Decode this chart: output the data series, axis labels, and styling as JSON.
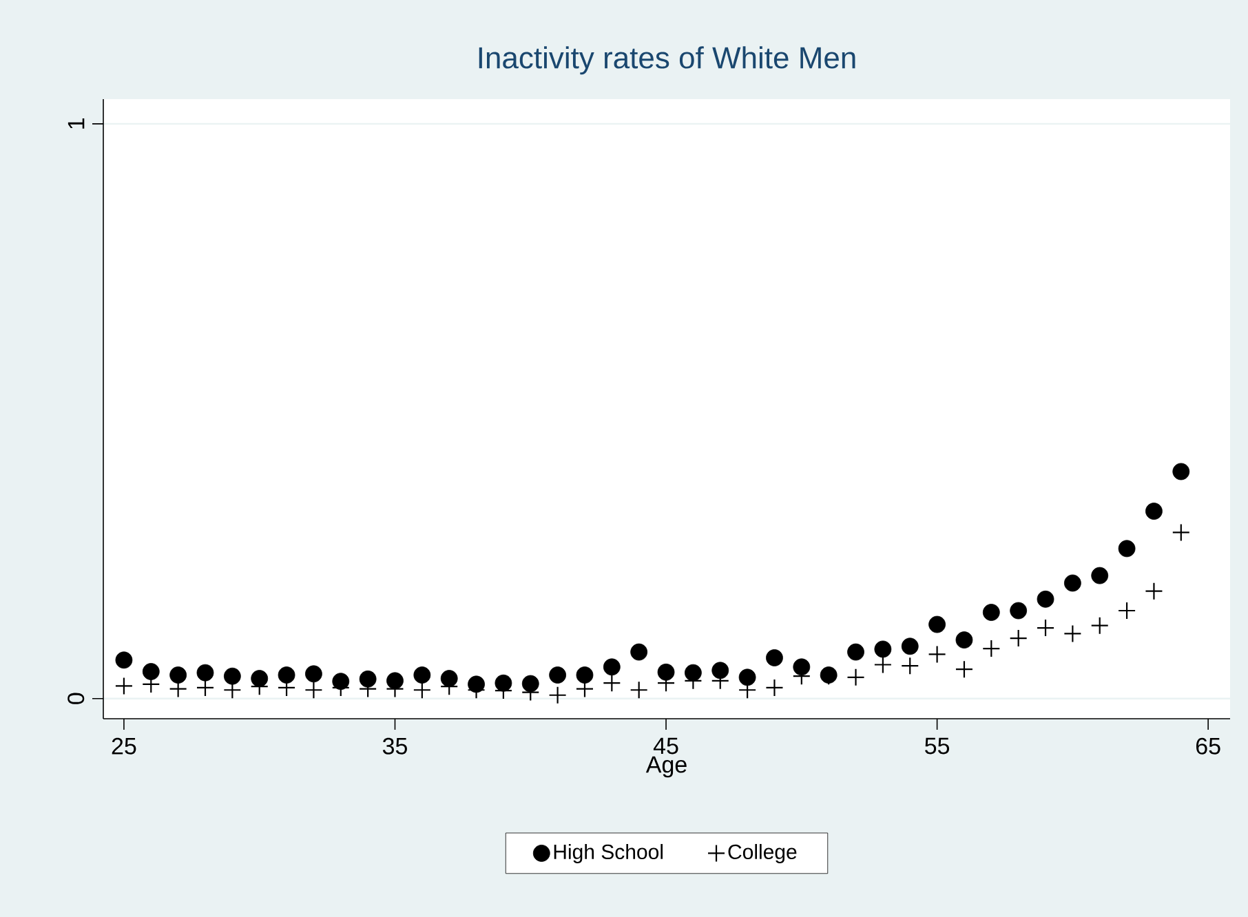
{
  "chart_data": {
    "type": "scatter",
    "title": "Inactivity rates of White Men",
    "xlabel": "Age",
    "x": [
      25,
      26,
      27,
      28,
      29,
      30,
      31,
      32,
      33,
      34,
      35,
      36,
      37,
      38,
      39,
      40,
      41,
      42,
      43,
      44,
      45,
      46,
      47,
      48,
      49,
      50,
      51,
      52,
      53,
      54,
      55,
      56,
      57,
      58,
      59,
      60,
      61,
      62,
      63,
      64
    ],
    "series": [
      {
        "name": "High School",
        "color": "#000000",
        "marker": "circle",
        "values": [
          0.067,
          0.047,
          0.041,
          0.045,
          0.039,
          0.035,
          0.041,
          0.043,
          0.03,
          0.034,
          0.031,
          0.041,
          0.035,
          0.025,
          0.027,
          0.026,
          0.041,
          0.041,
          0.055,
          0.081,
          0.046,
          0.045,
          0.049,
          0.037,
          0.071,
          0.055,
          0.041,
          0.081,
          0.086,
          0.091,
          0.129,
          0.102,
          0.15,
          0.153,
          0.173,
          0.201,
          0.214,
          0.261,
          0.326,
          0.395
        ]
      },
      {
        "name": "College",
        "color": "#000000",
        "marker": "cross",
        "values": [
          0.022,
          0.025,
          0.017,
          0.019,
          0.015,
          0.021,
          0.019,
          0.015,
          0.019,
          0.017,
          0.017,
          0.015,
          0.021,
          0.015,
          0.014,
          0.011,
          0.006,
          0.017,
          0.027,
          0.015,
          0.027,
          0.031,
          0.031,
          0.015,
          0.019,
          0.039,
          0.039,
          0.037,
          0.059,
          0.057,
          0.077,
          0.051,
          0.087,
          0.105,
          0.123,
          0.113,
          0.127,
          0.153,
          0.187,
          0.289
        ]
      }
    ],
    "xlim": [
      24.24,
      65.81
    ],
    "ylim": [
      -0.035,
      1.043
    ],
    "xticks": [
      25,
      35,
      45,
      55,
      65
    ],
    "yticks": [
      0,
      1
    ],
    "grid": "y",
    "legend": "bottom"
  }
}
